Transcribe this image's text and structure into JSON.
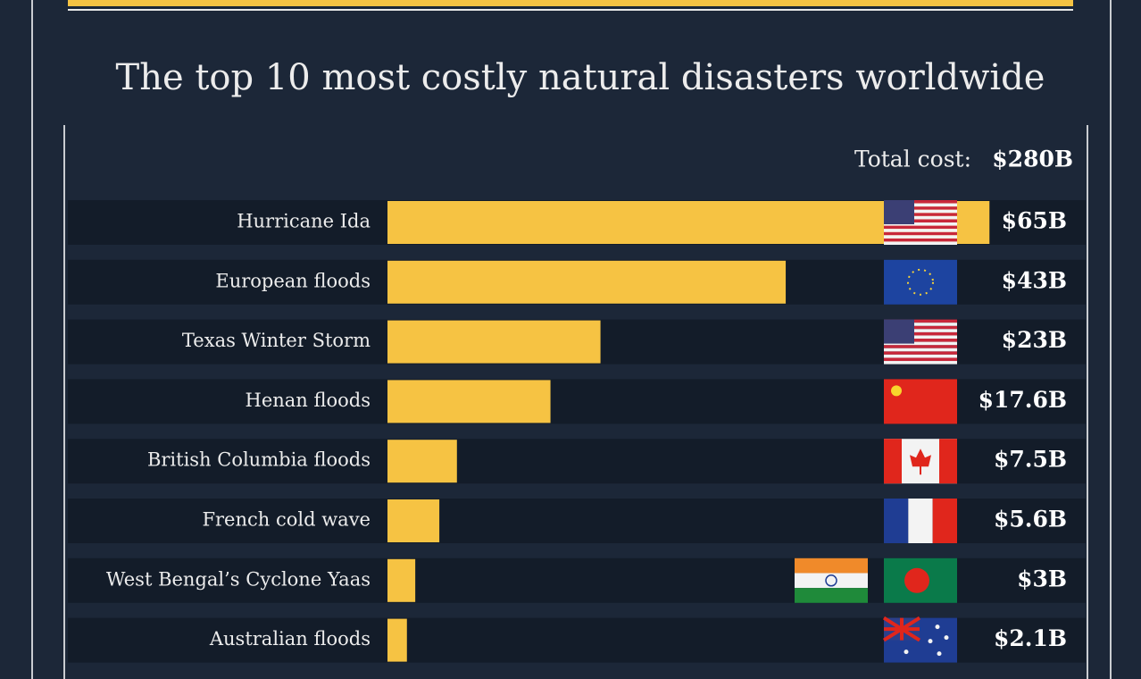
{
  "chart_data": {
    "type": "bar",
    "orientation": "horizontal",
    "title": "The top 10 most costly natural disasters worldwide",
    "total_label": "Total cost:",
    "total_value_label": "$280B",
    "categories": [
      "Hurricane Ida",
      "European floods",
      "Texas Winter Storm",
      "Henan floods",
      "British Columbia floods",
      "French cold wave",
      "West Bengal’s Cyclone Yaas",
      "Australian floods"
    ],
    "values": [
      65,
      43,
      23,
      17.6,
      7.5,
      5.6,
      3,
      2.1
    ],
    "value_labels": [
      "$65B",
      "$43B",
      "$23B",
      "$17.6B",
      "$7.5B",
      "$5.6B",
      "$3B",
      "$2.1B"
    ],
    "color": "#f6c343",
    "xlim": [
      0,
      75
    ]
  }
}
